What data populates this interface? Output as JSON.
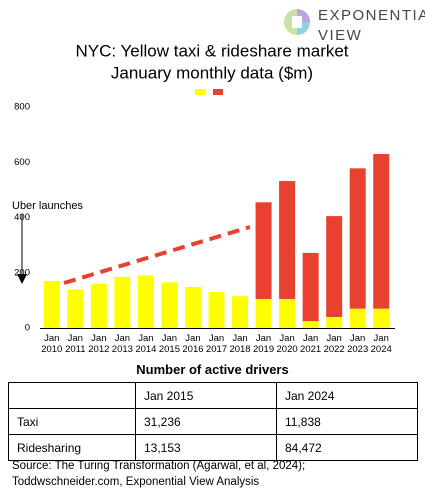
{
  "logo": [
    "EXPONENTIAL",
    "VIEW"
  ],
  "chart_data": {
    "type": "stacked_bar",
    "title": [
      "NYC: Yellow taxi & rideshare market",
      "January monthly data ($m)"
    ],
    "categories": [
      "Jan 2010",
      "Jan 2011",
      "Jan 2012",
      "Jan 2013",
      "Jan 2014",
      "Jan 2015",
      "Jan 2016",
      "Jan 2017",
      "Jan 2018",
      "Jan 2019",
      "Jan 2020",
      "Jan 2021",
      "Jan 2022",
      "Jan 2023",
      "Jan 2024"
    ],
    "series": [
      {
        "color": "#ffff00",
        "values": [
          170,
          140,
          160,
          185,
          190,
          165,
          148,
          130,
          115,
          105,
          105,
          25,
          40,
          70,
          70
        ]
      },
      {
        "color": "#e8412f",
        "values": [
          0,
          0,
          0,
          0,
          0,
          0,
          0,
          0,
          0,
          350,
          427,
          247,
          365,
          508,
          560
        ]
      }
    ],
    "ylim": [
      0,
      800
    ],
    "yticks": [
      0,
      200,
      400,
      600,
      800
    ],
    "grid": false,
    "annotation": "Uber launches"
  },
  "table": {
    "title": "Number of active drivers",
    "columns": [
      "Jan 2015",
      "Jan 2024"
    ],
    "rows": [
      [
        "Taxi",
        "31,236",
        "11,838"
      ],
      [
        "Ridesharing",
        "13,153",
        "84,472"
      ]
    ]
  },
  "source": [
    "Source: The Turing Transformation (Agarwal, et al, 2024);",
    "Toddwschneider.com, Exponential View Analysis"
  ]
}
